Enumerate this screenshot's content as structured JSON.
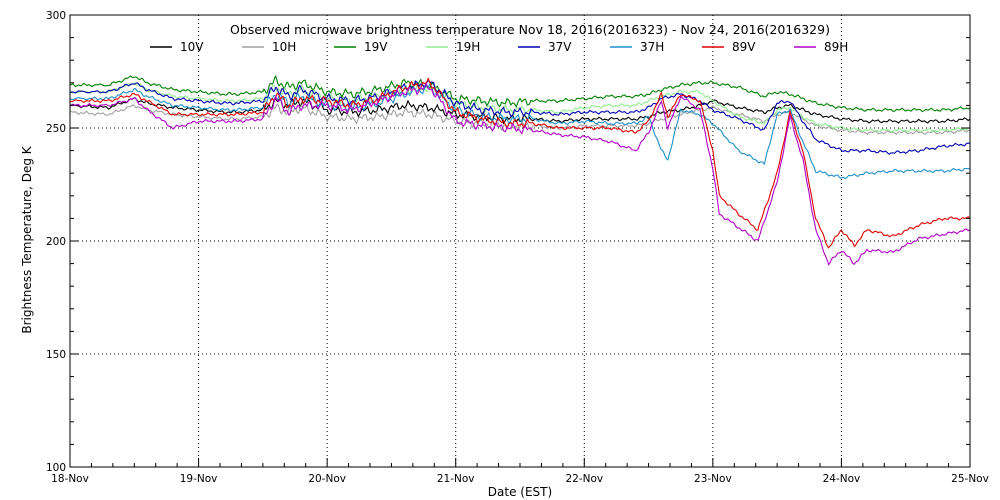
{
  "chart_data": {
    "type": "line",
    "title": "Observed microwave brightness temperature Nov 18, 2016(2016323) - Nov 24, 2016(2016329)",
    "xlabel": "Date (EST)",
    "ylabel": "Brightness Temperature, Deg K",
    "xlim": [
      0,
      7
    ],
    "ylim": [
      100,
      300
    ],
    "x_tick_labels": [
      "18-Nov",
      "19-Nov",
      "20-Nov",
      "21-Nov",
      "22-Nov",
      "23-Nov",
      "24-Nov",
      "25-Nov"
    ],
    "y_tick_labels": [
      "100",
      "150",
      "200",
      "250",
      "300"
    ],
    "grid": true,
    "legend_placement": "top",
    "x_unit": "days since 18-Nov 00:00 EST",
    "series": [
      {
        "name": "10V",
        "color": "#000000",
        "x": [
          0,
          0.3,
          0.5,
          0.6,
          0.8,
          1.0,
          1.2,
          1.3,
          1.5,
          1.6,
          1.7,
          1.8,
          2.0,
          2.2,
          2.4,
          2.6,
          2.8,
          3.0,
          3.2,
          3.4,
          3.6,
          3.8,
          4.0,
          4.2,
          4.4,
          4.5,
          4.6,
          4.75,
          4.9,
          5.0,
          5.2,
          5.4,
          5.5,
          5.6,
          5.7,
          5.8,
          6.0,
          6.2,
          6.4,
          6.6,
          6.8,
          7.0
        ],
        "y": [
          260,
          259,
          263,
          261,
          259,
          258,
          257,
          257,
          258,
          262,
          260,
          262,
          258,
          257,
          258,
          260,
          259,
          256,
          255,
          254,
          254,
          253,
          254,
          254,
          254,
          255,
          257,
          258,
          260,
          262,
          259,
          257,
          259,
          260,
          258,
          256,
          254,
          253,
          253,
          253,
          253,
          254
        ]
      },
      {
        "name": "10H",
        "color": "#a0a0a0",
        "x": [
          0,
          0.3,
          0.5,
          0.6,
          0.8,
          1.0,
          1.2,
          1.3,
          1.5,
          1.6,
          1.7,
          1.8,
          2.0,
          2.2,
          2.4,
          2.6,
          2.8,
          3.0,
          3.2,
          3.4,
          3.6,
          3.8,
          4.0,
          4.2,
          4.4,
          4.5,
          4.6,
          4.75,
          4.9,
          5.0,
          5.2,
          5.4,
          5.5,
          5.6,
          5.7,
          5.8,
          6.0,
          6.2,
          6.4,
          6.6,
          6.8,
          7.0
        ],
        "y": [
          257,
          256,
          260,
          258,
          256,
          255,
          254,
          254,
          255,
          259,
          257,
          259,
          255,
          254,
          255,
          257,
          256,
          253,
          252,
          251,
          251,
          250,
          251,
          251,
          251,
          252,
          254,
          256,
          258,
          259,
          256,
          253,
          256,
          257,
          254,
          251,
          249,
          248,
          248,
          248,
          248,
          249
        ]
      },
      {
        "name": "19V",
        "color": "#008000",
        "x": [
          0,
          0.3,
          0.5,
          0.6,
          0.8,
          1.0,
          1.2,
          1.3,
          1.5,
          1.6,
          1.7,
          1.8,
          2.0,
          2.2,
          2.4,
          2.6,
          2.8,
          3.0,
          3.2,
          3.4,
          3.6,
          3.8,
          4.0,
          4.2,
          4.4,
          4.5,
          4.6,
          4.75,
          4.9,
          5.0,
          5.2,
          5.4,
          5.5,
          5.6,
          5.7,
          5.8,
          6.0,
          6.2,
          6.4,
          6.6,
          6.8,
          7.0
        ],
        "y": [
          269,
          269,
          273,
          270,
          267,
          266,
          265,
          265,
          266,
          271,
          268,
          270,
          266,
          265,
          267,
          270,
          269,
          263,
          262,
          261,
          262,
          262,
          263,
          264,
          264,
          265,
          267,
          269,
          270,
          270,
          268,
          264,
          266,
          265,
          263,
          261,
          259,
          258,
          258,
          258,
          258,
          259
        ]
      },
      {
        "name": "19H",
        "color": "#90ee90",
        "x": [
          0,
          0.3,
          0.5,
          0.6,
          0.8,
          1.0,
          1.2,
          1.3,
          1.5,
          1.6,
          1.7,
          1.8,
          2.0,
          2.2,
          2.4,
          2.6,
          2.8,
          3.0,
          3.2,
          3.4,
          3.6,
          3.8,
          4.0,
          4.2,
          4.4,
          4.5,
          4.6,
          4.75,
          4.9,
          5.0,
          5.2,
          5.4,
          5.5,
          5.6,
          5.7,
          5.8,
          6.0,
          6.2,
          6.4,
          6.6,
          6.8,
          7.0
        ],
        "y": [
          266,
          266,
          270,
          267,
          264,
          263,
          262,
          262,
          263,
          268,
          265,
          267,
          263,
          262,
          264,
          267,
          268,
          261,
          259,
          258,
          258,
          257,
          259,
          260,
          260,
          262,
          264,
          266,
          266,
          262,
          255,
          252,
          258,
          259,
          255,
          252,
          250,
          249,
          249,
          249,
          249,
          250
        ]
      },
      {
        "name": "37V",
        "color": "#0000b0",
        "x": [
          0,
          0.3,
          0.5,
          0.6,
          0.8,
          1.0,
          1.2,
          1.3,
          1.5,
          1.6,
          1.7,
          1.8,
          2.0,
          2.2,
          2.4,
          2.6,
          2.8,
          3.0,
          3.2,
          3.4,
          3.6,
          3.8,
          4.0,
          4.2,
          4.4,
          4.5,
          4.6,
          4.75,
          4.9,
          5.0,
          5.2,
          5.4,
          5.5,
          5.6,
          5.7,
          5.8,
          6.0,
          6.2,
          6.4,
          6.6,
          6.8,
          7.0
        ],
        "y": [
          266,
          266,
          270,
          267,
          263,
          262,
          261,
          261,
          262,
          268,
          264,
          267,
          263,
          262,
          264,
          268,
          270,
          261,
          258,
          257,
          257,
          256,
          257,
          257,
          257,
          259,
          263,
          265,
          262,
          258,
          254,
          249,
          261,
          262,
          253,
          245,
          240,
          240,
          239,
          240,
          242,
          243
        ]
      },
      {
        "name": "37H",
        "color": "#1e90c8",
        "x": [
          0,
          0.3,
          0.5,
          0.6,
          0.8,
          1.0,
          1.2,
          1.3,
          1.5,
          1.6,
          1.7,
          1.8,
          2.0,
          2.2,
          2.4,
          2.6,
          2.8,
          3.0,
          3.2,
          3.4,
          3.6,
          3.8,
          4.0,
          4.2,
          4.4,
          4.5,
          4.6,
          4.65,
          4.75,
          4.9,
          5.0,
          5.2,
          5.4,
          5.5,
          5.6,
          5.7,
          5.8,
          6.0,
          6.2,
          6.4,
          6.6,
          6.8,
          7.0
        ],
        "y": [
          263,
          263,
          267,
          264,
          260,
          259,
          258,
          258,
          259,
          265,
          261,
          264,
          260,
          259,
          261,
          265,
          268,
          258,
          255,
          254,
          254,
          252,
          253,
          252,
          252,
          255,
          240,
          236,
          258,
          256,
          252,
          240,
          234,
          256,
          258,
          244,
          231,
          228,
          230,
          231,
          231,
          231,
          232
        ]
      },
      {
        "name": "89V",
        "color": "#e00000",
        "x": [
          0,
          0.3,
          0.5,
          0.6,
          0.8,
          1.0,
          1.2,
          1.3,
          1.5,
          1.6,
          1.7,
          1.8,
          2.0,
          2.2,
          2.4,
          2.6,
          2.8,
          3.0,
          3.2,
          3.4,
          3.6,
          3.8,
          4.0,
          4.2,
          4.4,
          4.5,
          4.6,
          4.65,
          4.75,
          4.9,
          5.0,
          5.05,
          5.2,
          5.35,
          5.5,
          5.6,
          5.7,
          5.8,
          5.9,
          6.0,
          6.1,
          6.2,
          6.4,
          6.6,
          6.8,
          7.0
        ],
        "y": [
          262,
          262,
          265,
          262,
          256,
          256,
          256,
          256,
          257,
          265,
          260,
          263,
          262,
          260,
          263,
          268,
          270,
          257,
          254,
          252,
          252,
          250,
          250,
          250,
          248,
          253,
          265,
          255,
          265,
          262,
          240,
          220,
          212,
          205,
          230,
          257,
          240,
          210,
          197,
          205,
          198,
          205,
          202,
          207,
          210,
          210
        ]
      },
      {
        "name": "89H",
        "color": "#b000c8",
        "x": [
          0,
          0.3,
          0.5,
          0.6,
          0.8,
          1.0,
          1.2,
          1.3,
          1.5,
          1.6,
          1.7,
          1.8,
          2.0,
          2.2,
          2.4,
          2.6,
          2.8,
          3.0,
          3.2,
          3.4,
          3.6,
          3.8,
          4.0,
          4.2,
          4.4,
          4.5,
          4.6,
          4.65,
          4.75,
          4.9,
          5.0,
          5.05,
          5.2,
          5.35,
          5.5,
          5.6,
          5.7,
          5.8,
          5.9,
          6.0,
          6.1,
          6.2,
          6.4,
          6.6,
          6.8,
          7.0
        ],
        "y": [
          260,
          260,
          263,
          258,
          250,
          253,
          253,
          253,
          254,
          263,
          257,
          260,
          260,
          258,
          262,
          266,
          268,
          253,
          251,
          250,
          249,
          247,
          246,
          244,
          240,
          248,
          262,
          250,
          264,
          258,
          232,
          212,
          206,
          200,
          226,
          255,
          236,
          205,
          190,
          196,
          190,
          196,
          195,
          201,
          203,
          205
        ]
      }
    ]
  }
}
